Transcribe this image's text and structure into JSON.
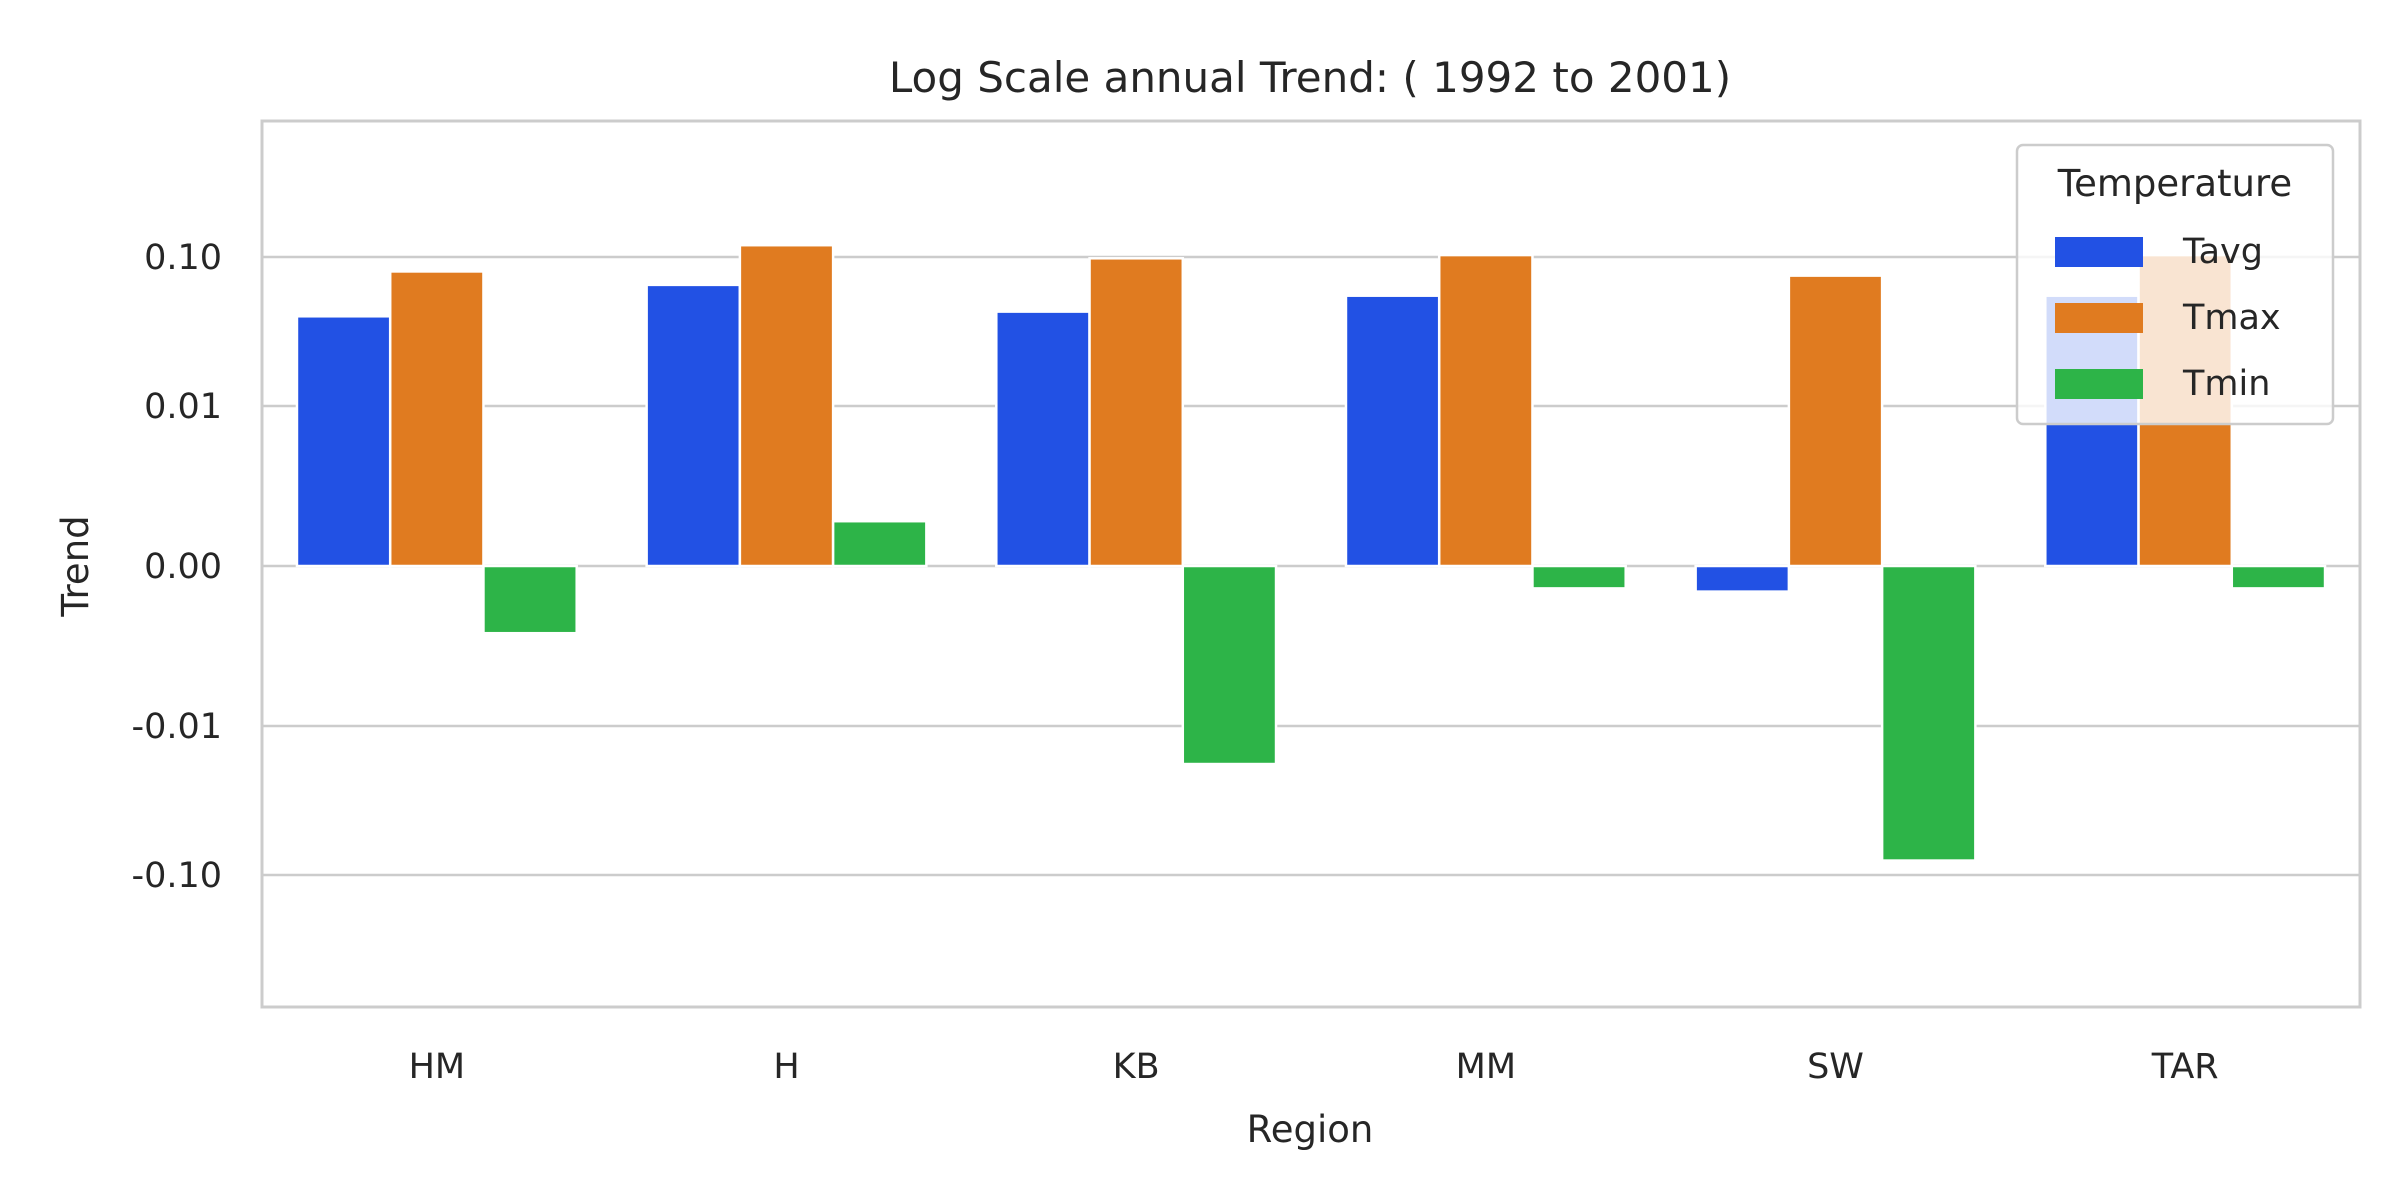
{
  "chart_data": {
    "type": "bar",
    "title": "Log Scale annual Trend: ( 1992 to 2001)",
    "xlabel": "Region",
    "ylabel": "Trend",
    "categories": [
      "HM",
      "H",
      "KB",
      "MM",
      "SW",
      "TAR"
    ],
    "y_scale": "symlog",
    "y_ticks": [
      0.1,
      0.01,
      0.0,
      -0.01,
      -0.1
    ],
    "y_tick_labels": [
      "0.10",
      "0.01",
      "0.00",
      "-0.01",
      "-0.10"
    ],
    "ylim": [
      -0.85,
      0.85
    ],
    "grid": true,
    "legend": {
      "title": "Temperature",
      "placement": "top-right"
    },
    "series": [
      {
        "name": "Tavg",
        "color": "#2251e4",
        "values": [
          0.04,
          0.065,
          0.043,
          0.055,
          -0.0016,
          0.055
        ]
      },
      {
        "name": "Tmax",
        "color": "#e07b20",
        "values": [
          0.08,
          0.12,
          0.098,
          0.103,
          0.075,
          0.103
        ]
      },
      {
        "name": "Tmin",
        "color": "#2db448",
        "values": [
          -0.0042,
          0.0028,
          -0.018,
          -0.0014,
          -0.08,
          -0.0014
        ]
      }
    ]
  }
}
